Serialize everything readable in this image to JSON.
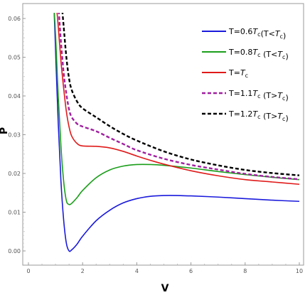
{
  "chart_data": {
    "type": "line",
    "xlabel": "V",
    "ylabel": "P",
    "xlim": [
      0,
      10
    ],
    "ylim": [
      -0.0005,
      0.0625
    ],
    "x_ticks": [
      0,
      2,
      4,
      6,
      8,
      10
    ],
    "x_tick_labels": [
      "0",
      "2",
      "4",
      "6",
      "8",
      "10"
    ],
    "y_ticks": [
      0.0,
      0.01,
      0.02,
      0.03,
      0.04,
      0.05,
      0.06
    ],
    "y_tick_labels": [
      "0.00",
      "0.01",
      "0.02",
      "0.03",
      "0.04",
      "0.05",
      "0.06"
    ],
    "legend_placement": "top-right",
    "series": [
      {
        "name": "T=0.6Tc(T<Tc)",
        "color": "#1a1adc",
        "dash": "solid",
        "x": [
          0.95,
          1.0,
          1.1,
          1.2,
          1.3,
          1.4,
          1.5,
          1.6,
          1.8,
          2.0,
          2.5,
          3.0,
          3.5,
          4.0,
          4.5,
          5.0,
          5.5,
          6.0,
          7.0,
          8.0,
          9.0,
          10.0
        ],
        "y": [
          0.062,
          0.052,
          0.033,
          0.018,
          0.008,
          0.002,
          0.0,
          0.0003,
          0.0018,
          0.0038,
          0.0078,
          0.0105,
          0.0124,
          0.0135,
          0.0141,
          0.0143,
          0.0143,
          0.0142,
          0.0139,
          0.0135,
          0.0131,
          0.0128
        ]
      },
      {
        "name": "T=0.8Tc (T<Tc)",
        "color": "#1a9e1a",
        "dash": "solid",
        "x": [
          0.95,
          1.0,
          1.1,
          1.2,
          1.3,
          1.4,
          1.5,
          1.6,
          1.8,
          2.0,
          2.5,
          3.0,
          3.5,
          4.0,
          4.5,
          5.0,
          6.0,
          7.0,
          8.0,
          9.0,
          10.0
        ],
        "y": [
          0.062,
          0.056,
          0.04,
          0.027,
          0.018,
          0.013,
          0.012,
          0.0123,
          0.0138,
          0.0156,
          0.0189,
          0.0209,
          0.0219,
          0.0223,
          0.0223,
          0.0221,
          0.0214,
          0.0205,
          0.0197,
          0.019,
          0.0184
        ]
      },
      {
        "name": "T=Tc",
        "color": "#e01a1a",
        "dash": "solid",
        "x": [
          1.05,
          1.1,
          1.2,
          1.3,
          1.4,
          1.5,
          1.6,
          1.8,
          2.0,
          2.5,
          3.0,
          3.5,
          4.0,
          4.5,
          5.0,
          6.0,
          7.0,
          8.0,
          9.0,
          10.0
        ],
        "y": [
          0.062,
          0.058,
          0.049,
          0.042,
          0.036,
          0.032,
          0.0296,
          0.0277,
          0.0271,
          0.027,
          0.0266,
          0.0257,
          0.0245,
          0.0234,
          0.0224,
          0.0207,
          0.0194,
          0.0184,
          0.0178,
          0.0172
        ]
      },
      {
        "name": "T=1.1Tc (T>Tc)",
        "color": "#a020a0",
        "dash": "dashed",
        "x": [
          1.12,
          1.2,
          1.3,
          1.4,
          1.5,
          1.6,
          1.8,
          2.0,
          2.5,
          3.0,
          3.5,
          4.0,
          5.0,
          6.0,
          7.0,
          8.0,
          9.0,
          10.0
        ],
        "y": [
          0.062,
          0.054,
          0.046,
          0.0405,
          0.0365,
          0.0345,
          0.0328,
          0.0321,
          0.0309,
          0.0292,
          0.0276,
          0.026,
          0.0238,
          0.0222,
          0.021,
          0.0199,
          0.0191,
          0.0185
        ]
      },
      {
        "name": "T=1.2Tc (T>Tc)",
        "color": "#000000",
        "dash": "dashed",
        "x": [
          1.25,
          1.3,
          1.4,
          1.5,
          1.6,
          1.8,
          2.0,
          2.5,
          3.0,
          3.5,
          4.0,
          5.0,
          6.0,
          7.0,
          8.0,
          9.0,
          10.0
        ],
        "y": [
          0.062,
          0.058,
          0.05,
          0.0445,
          0.0415,
          0.0385,
          0.0368,
          0.0345,
          0.0322,
          0.0302,
          0.0285,
          0.0257,
          0.0236,
          0.0221,
          0.0209,
          0.0201,
          0.0195
        ]
      }
    ],
    "legend_labels": [
      {
        "prefix": "T=0.6",
        "mid": "(T<",
        "suffix": ")"
      },
      {
        "prefix": "T=0.8",
        "mid": " (T<",
        "suffix": ")"
      },
      {
        "prefix": "T=",
        "mid": "",
        "suffix": ""
      },
      {
        "prefix": "T=1.1",
        "mid": " (T>",
        "suffix": ")"
      },
      {
        "prefix": "T=1.2",
        "mid": " (T>",
        "suffix": ")"
      }
    ],
    "legend_var": "T",
    "legend_sub": "c"
  }
}
